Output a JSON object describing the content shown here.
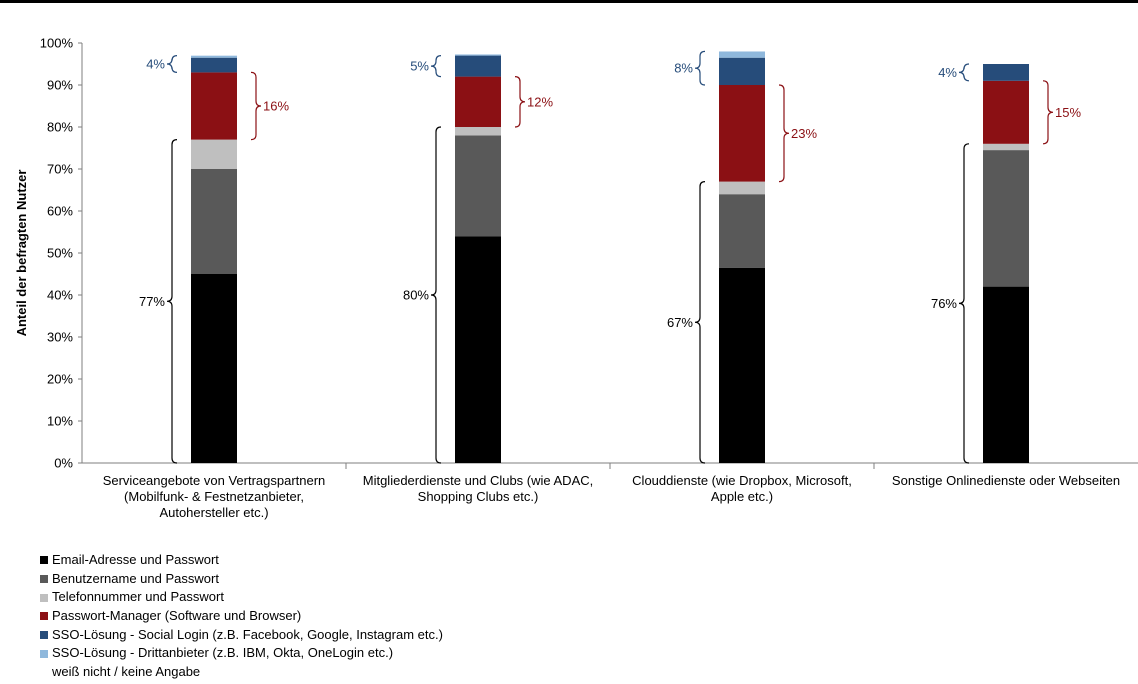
{
  "chart_data": {
    "type": "bar",
    "stacked": true,
    "ylabel": "Anteil der befragten Nutzer",
    "ylim": [
      0,
      100
    ],
    "yticks": [
      "0%",
      "10%",
      "20%",
      "30%",
      "40%",
      "50%",
      "60%",
      "70%",
      "80%",
      "90%",
      "100%"
    ],
    "categories": [
      [
        "Serviceangebote von Vertragspartnern",
        "(Mobilfunk- & Festnetzanbieter,",
        "Autohersteller etc.)"
      ],
      [
        "Mitgliederdienste und Clubs (wie ADAC,",
        "Shopping Clubs etc.)"
      ],
      [
        "Clouddienste (wie Dropbox, Microsoft,",
        "Apple etc.)"
      ],
      [
        "Sonstige Onlinedienste oder Webseiten"
      ]
    ],
    "series": [
      {
        "name": "Email-Adresse und Passwort",
        "color": "#000000",
        "values": [
          45,
          54,
          46.5,
          42
        ]
      },
      {
        "name": "Benutzername und Passwort",
        "color": "#595959",
        "values": [
          25,
          24,
          17.5,
          32.5
        ]
      },
      {
        "name": "Telefonnummer und Passwort",
        "color": "#bfbfbf",
        "values": [
          7,
          2,
          3,
          1.5
        ]
      },
      {
        "name": "Passwort-Manager (Software und Browser)",
        "color": "#8b1014",
        "values": [
          16,
          12,
          23,
          15
        ]
      },
      {
        "name": "SSO-Lösung - Social Login (z.B. Facebook, Google, Instagram etc.)",
        "color": "#264c7a",
        "values": [
          3.5,
          5,
          6.5,
          4
        ]
      },
      {
        "name": "SSO-Lösung - Drittanbieter (z.B. IBM, Okta, OneLogin etc.)",
        "color": "#8fb8dc",
        "values": [
          0.5,
          0.3,
          1.5,
          0
        ]
      },
      {
        "name": "weiß nicht / keine Angabe",
        "color": "#ffffff",
        "values": [
          3,
          2.7,
          2,
          5
        ]
      }
    ],
    "annotations": [
      {
        "bar": 0,
        "label": "77%",
        "from": 0,
        "to": 77,
        "side": "left",
        "color": "#000000"
      },
      {
        "bar": 0,
        "label": "16%",
        "from": 77,
        "to": 93,
        "side": "right",
        "color": "#8b1014"
      },
      {
        "bar": 0,
        "label": "4%",
        "from": 93,
        "to": 97,
        "side": "left",
        "color": "#264c7a"
      },
      {
        "bar": 1,
        "label": "80%",
        "from": 0,
        "to": 80,
        "side": "left",
        "color": "#000000"
      },
      {
        "bar": 1,
        "label": "12%",
        "from": 80,
        "to": 92,
        "side": "right",
        "color": "#8b1014"
      },
      {
        "bar": 1,
        "label": "5%",
        "from": 92,
        "to": 97,
        "side": "left",
        "color": "#264c7a"
      },
      {
        "bar": 2,
        "label": "67%",
        "from": 0,
        "to": 67,
        "side": "left",
        "color": "#000000"
      },
      {
        "bar": 2,
        "label": "23%",
        "from": 67,
        "to": 90,
        "side": "right",
        "color": "#8b1014"
      },
      {
        "bar": 2,
        "label": "8%",
        "from": 90,
        "to": 98,
        "side": "left",
        "color": "#264c7a"
      },
      {
        "bar": 3,
        "label": "76%",
        "from": 0,
        "to": 76,
        "side": "left",
        "color": "#000000"
      },
      {
        "bar": 3,
        "label": "15%",
        "from": 76,
        "to": 91,
        "side": "right",
        "color": "#8b1014"
      },
      {
        "bar": 3,
        "label": "4%",
        "from": 91,
        "to": 95,
        "side": "left",
        "color": "#264c7a"
      }
    ],
    "legend": "bottom-left"
  }
}
